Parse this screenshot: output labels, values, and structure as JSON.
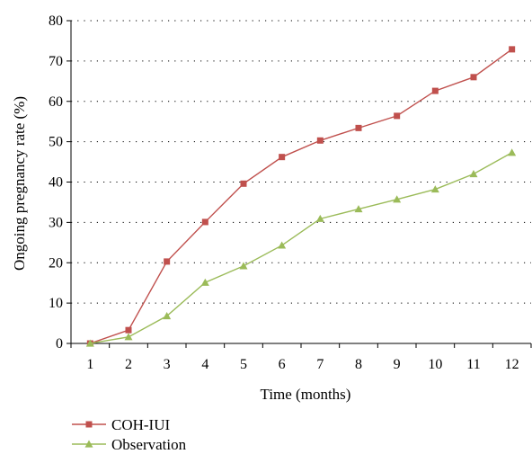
{
  "chart_data": {
    "type": "line",
    "xlabel": "Time (months)",
    "ylabel": "Ongoing pregnancy rate (%)",
    "x": [
      1,
      2,
      3,
      4,
      5,
      6,
      7,
      8,
      9,
      10,
      11,
      12
    ],
    "ylim": [
      0,
      80
    ],
    "yticks": [
      0,
      10,
      20,
      30,
      40,
      50,
      60,
      70,
      80
    ],
    "grid": "horizontal dotted",
    "legend_position": "bottom-left",
    "series": [
      {
        "name": "COH-IUI",
        "color": "#c0504d",
        "marker": "square",
        "values": [
          0,
          3.3,
          20.3,
          30.1,
          39.6,
          46.2,
          50.3,
          53.4,
          56.4,
          62.6,
          66.0,
          72.9
        ]
      },
      {
        "name": "Observation",
        "color": "#9bbb59",
        "marker": "triangle",
        "values": [
          0,
          1.6,
          6.8,
          15.1,
          19.2,
          24.3,
          30.9,
          33.3,
          35.7,
          38.2,
          42.0,
          47.3
        ]
      }
    ]
  }
}
